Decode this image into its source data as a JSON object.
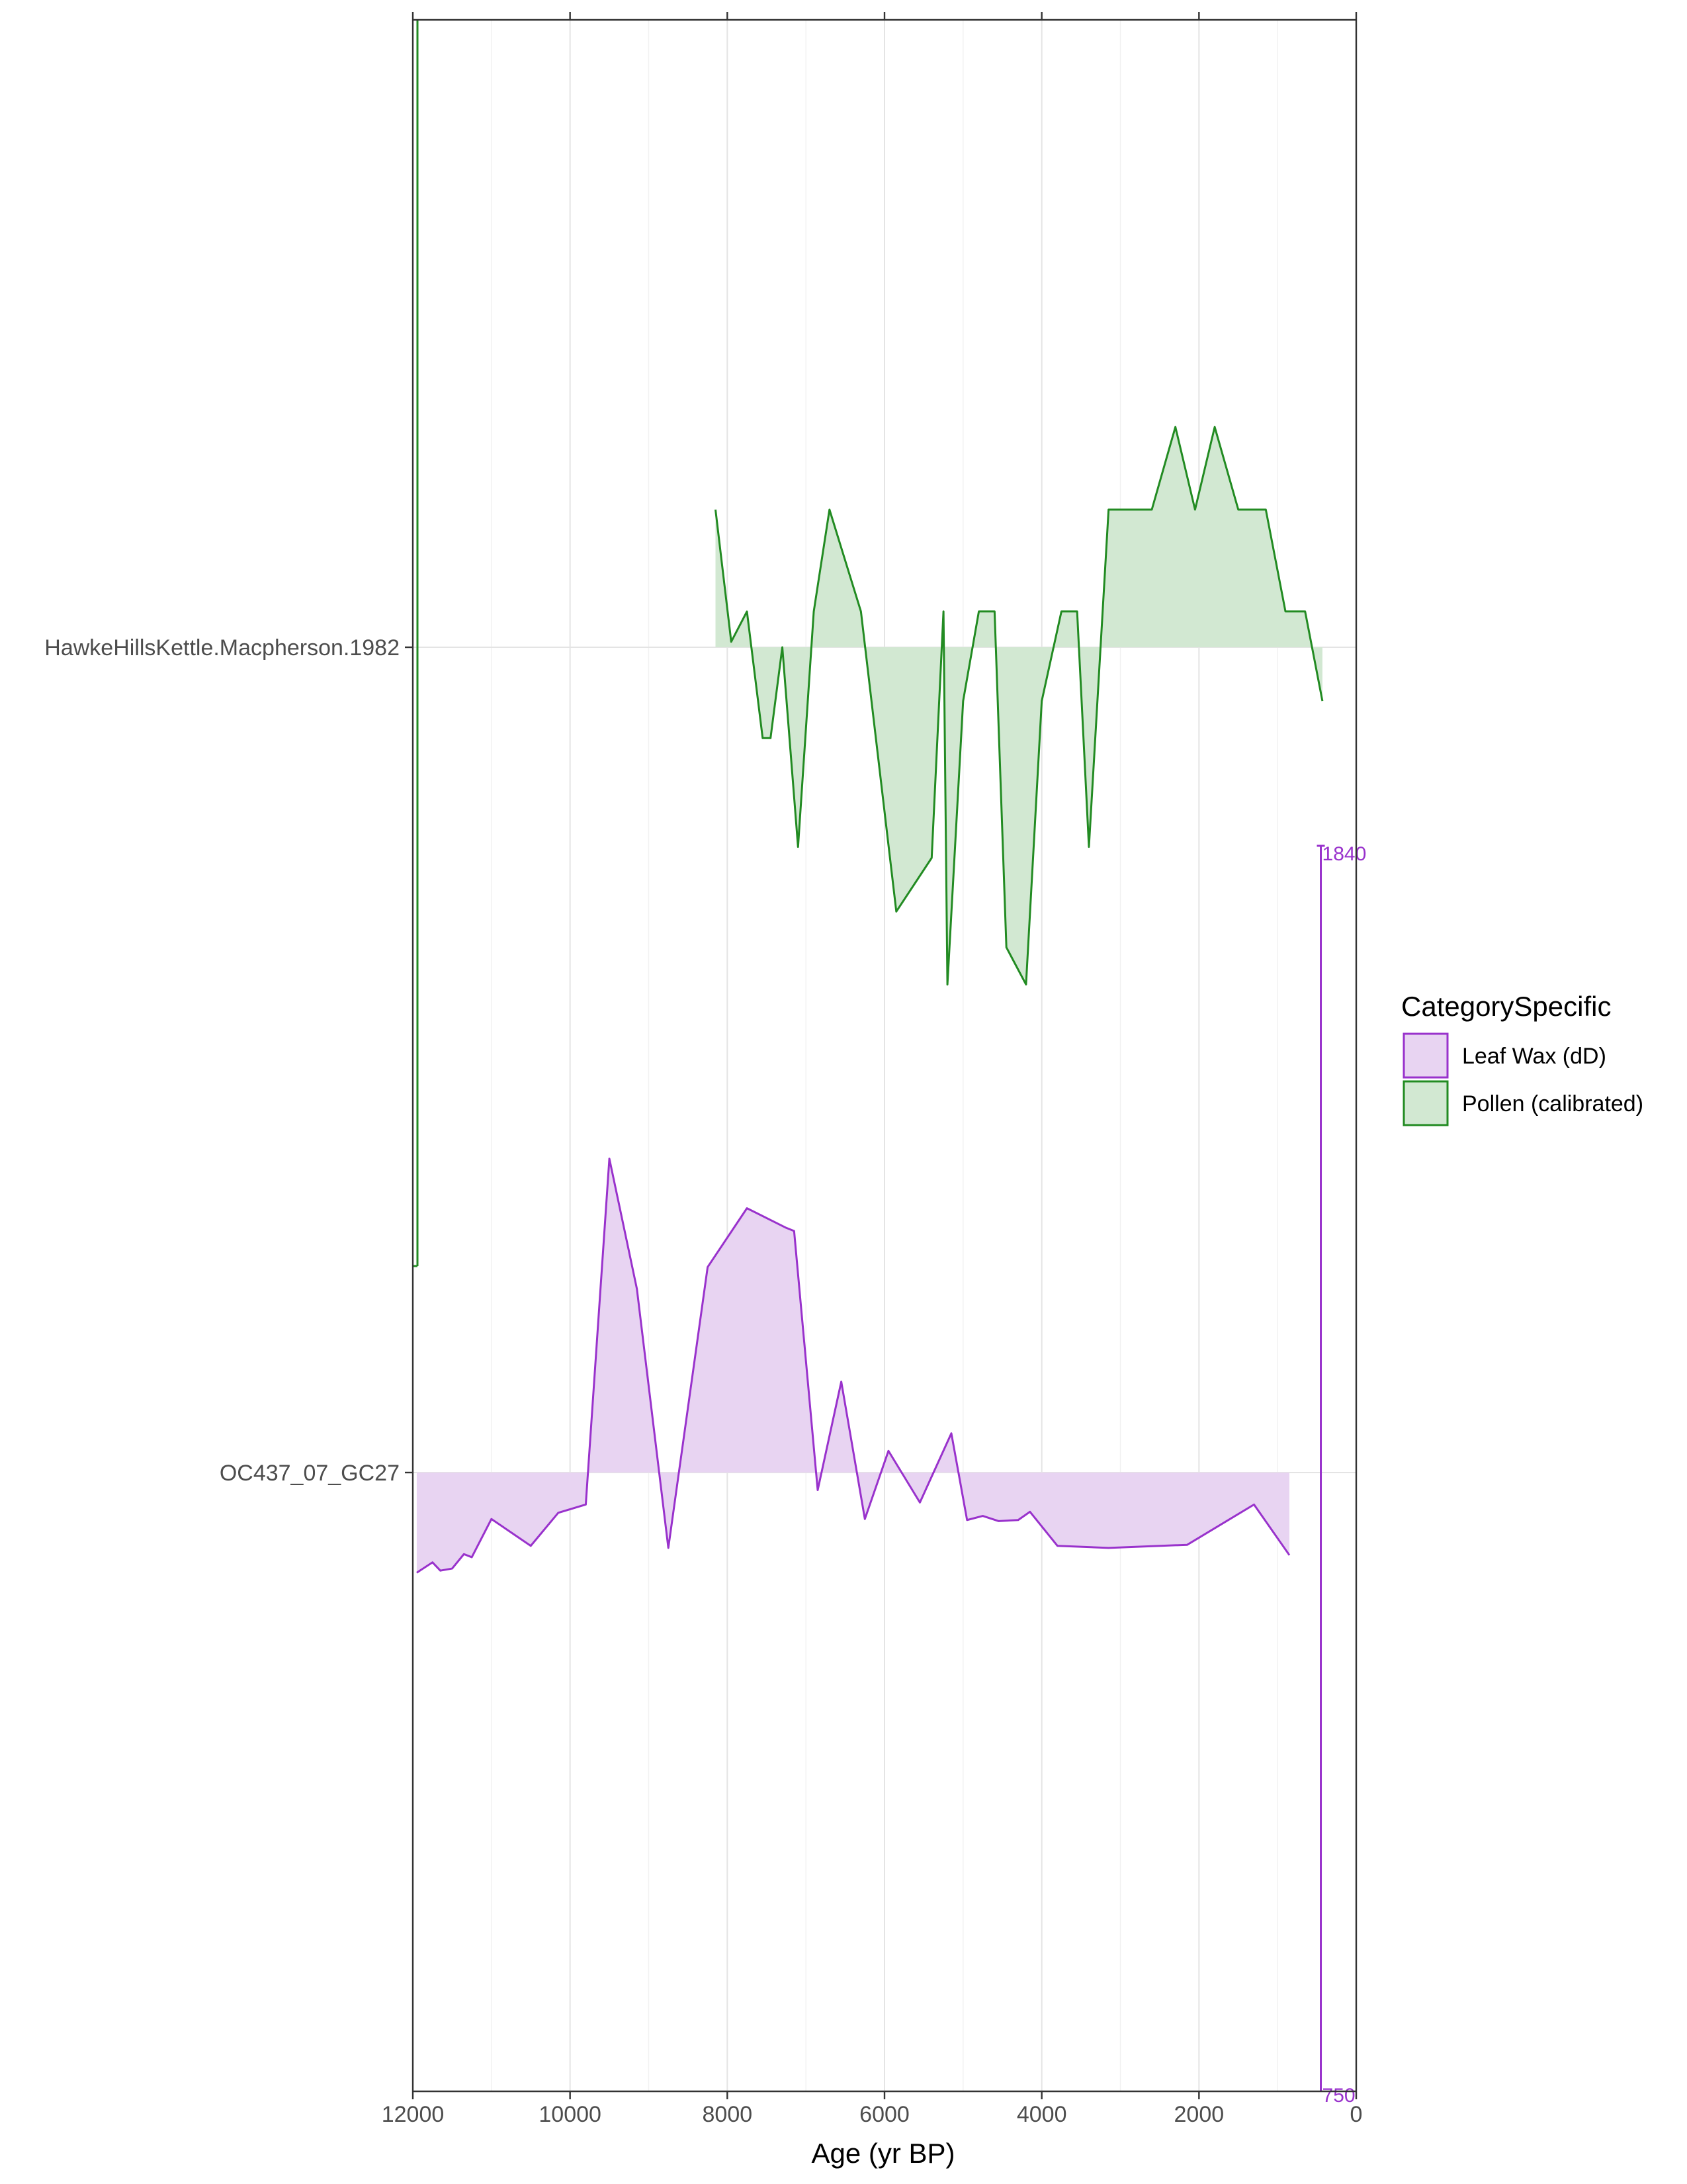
{
  "chart_data": {
    "type": "area",
    "title": "",
    "xlabel": "Age (yr BP)",
    "ylabel": "",
    "x_reversed": true,
    "xlim": [
      12000,
      0
    ],
    "x_ticks": [
      "12000",
      "10000",
      "8000",
      "6000",
      "4000",
      "2000",
      "0"
    ],
    "grid": "vertical minor and major gridlines, horizontal baseline per record",
    "legend": {
      "title": "CategorySpecific",
      "position": "right",
      "items": [
        {
          "label": "Leaf Wax (dD)",
          "color": "#9932CC",
          "fill": "#E8D4F2"
        },
        {
          "label": "Pollen (calibrated)",
          "color": "#228B22",
          "fill": "#D2E8D2"
        }
      ]
    },
    "y_ticks": [
      "HawkeHillsKettle.Macpherson.1982",
      "OC437_07_GC27"
    ],
    "scale_bar": {
      "top_label": "1840",
      "bottom_label": "750",
      "color": "#9932CC"
    },
    "series": [
      {
        "name": "Pollen (calibrated)",
        "site": "HawkeHillsKettle.Macpherson.1982",
        "color": "#228B22",
        "fill": "#D2E8D2",
        "x": [
          8150,
          7950,
          7750,
          7550,
          7450,
          7300,
          7100,
          6900,
          6700,
          6300,
          5850,
          5400,
          5250,
          5200,
          5000,
          4800,
          4600,
          4450,
          4200,
          4000,
          3750,
          3550,
          3400,
          3150,
          2600,
          2300,
          2050,
          1800,
          1500,
          1150,
          900,
          650,
          430
        ],
        "anomaly": [
          1.0,
          0.04,
          0.26,
          -0.66,
          -0.66,
          0.0,
          -1.45,
          0.26,
          1.0,
          0.26,
          -1.92,
          -1.53,
          0.26,
          -2.45,
          -0.39,
          0.26,
          0.26,
          -2.18,
          -2.45,
          -0.39,
          0.26,
          0.26,
          -1.45,
          1.0,
          1.0,
          1.6,
          1.0,
          1.6,
          1.0,
          1.0,
          0.26,
          0.26,
          -0.39
        ]
      },
      {
        "name": "Leaf Wax (dD)",
        "site": "OC437_07_GC27",
        "color": "#9932CC",
        "fill": "#E8D4F2",
        "x": [
          11950,
          11750,
          11650,
          11500,
          11350,
          11250,
          11000,
          10500,
          10150,
          9800,
          9500,
          9150,
          8750,
          8250,
          7750,
          7250,
          7150,
          6850,
          6550,
          6250,
          5950,
          5550,
          5150,
          4950,
          4750,
          4550,
          4300,
          4150,
          3800,
          3150,
          2150,
          1300,
          850
        ],
        "anomaly": [
          -0.97,
          -0.87,
          -0.95,
          -0.93,
          -0.79,
          -0.82,
          -0.45,
          -0.71,
          -0.39,
          -0.31,
          3.04,
          1.78,
          -0.73,
          1.99,
          2.56,
          2.37,
          2.34,
          -0.17,
          0.88,
          -0.45,
          0.21,
          -0.29,
          0.38,
          -0.46,
          -0.42,
          -0.47,
          -0.46,
          -0.38,
          -0.71,
          -0.73,
          -0.7,
          -0.31,
          -0.8
        ]
      }
    ]
  }
}
